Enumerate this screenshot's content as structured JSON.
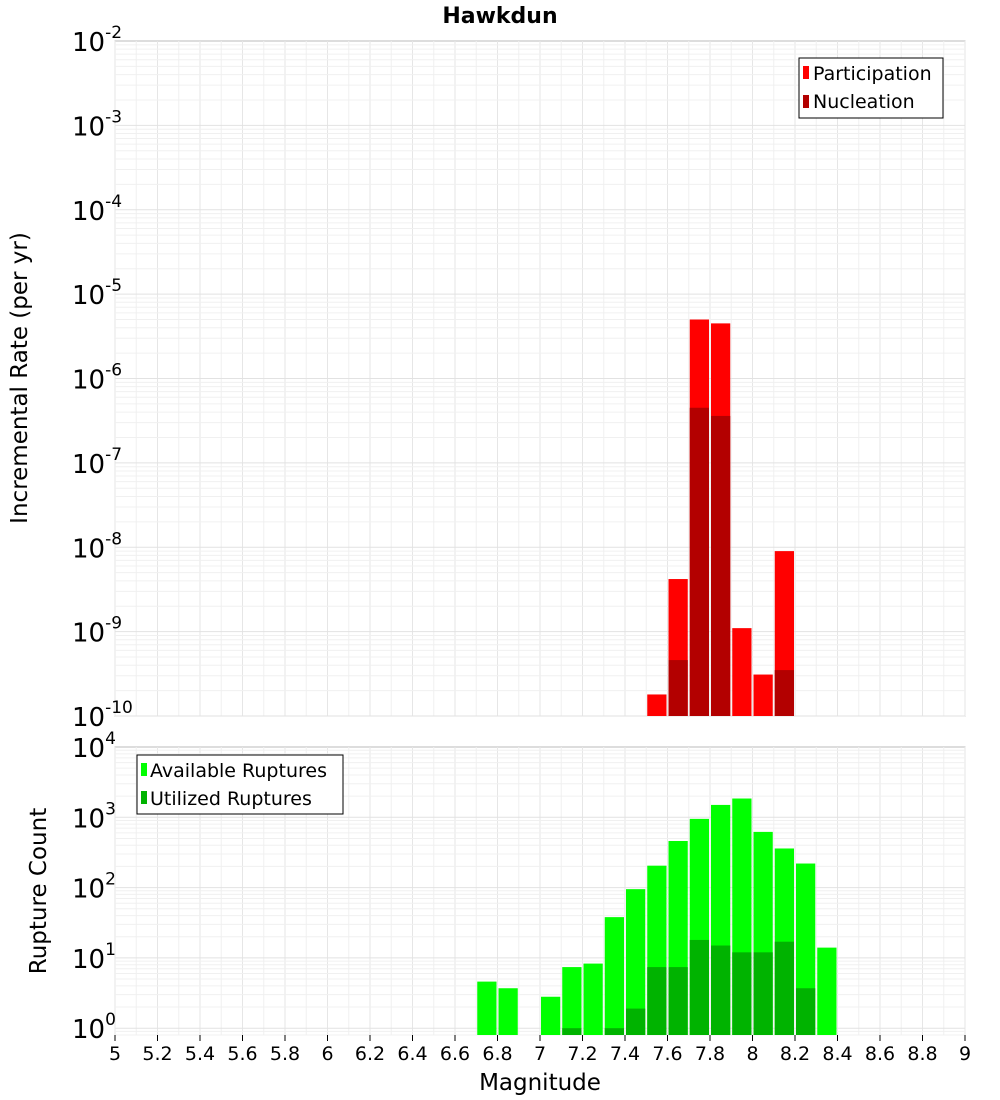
{
  "chart_data": [
    {
      "type": "bar",
      "title": "Hawkdun",
      "ylabel": "Incremental Rate (per yr)",
      "xlabel": "",
      "yscale": "log",
      "ylim": [
        1e-10,
        0.01
      ],
      "xlim": [
        5,
        9
      ],
      "x": [
        7.55,
        7.65,
        7.75,
        7.85,
        7.95,
        8.05,
        8.15
      ],
      "series": [
        {
          "name": "Participation",
          "color": "#ff0000",
          "values": [
            1.8e-10,
            4.2e-09,
            5e-06,
            4.5e-06,
            1.1e-09,
            3.1e-10,
            9e-09
          ]
        },
        {
          "name": "Nucleation",
          "color": "#b30000",
          "values": [
            null,
            4.6e-10,
            4.5e-07,
            3.6e-07,
            null,
            null,
            3.5e-10
          ]
        }
      ],
      "y_ticks": [
        {
          "base": "10",
          "exp": "-2"
        },
        {
          "base": "10",
          "exp": "-3"
        },
        {
          "base": "10",
          "exp": "-4"
        },
        {
          "base": "10",
          "exp": "-5"
        },
        {
          "base": "10",
          "exp": "-6"
        },
        {
          "base": "10",
          "exp": "-7"
        },
        {
          "base": "10",
          "exp": "-8"
        },
        {
          "base": "10",
          "exp": "-9"
        },
        {
          "base": "10",
          "exp": "-10"
        }
      ],
      "legend": {
        "placement": "top-right"
      },
      "grid": true
    },
    {
      "type": "bar",
      "title": "",
      "ylabel": "Rupture Count",
      "xlabel": "Magnitude",
      "yscale": "log",
      "ylim": [
        0.8,
        10000
      ],
      "xlim": [
        5,
        9
      ],
      "x": [
        6.75,
        6.85,
        6.95,
        7.05,
        7.15,
        7.25,
        7.35,
        7.45,
        7.55,
        7.65,
        7.75,
        7.85,
        7.95,
        8.05,
        8.15,
        8.25,
        8.35
      ],
      "series": [
        {
          "name": "Available Ruptures",
          "color": "#00ff00",
          "values": [
            4.6,
            3.7,
            null,
            2.8,
            7.4,
            8.3,
            38,
            95,
            205,
            460,
            950,
            1500,
            1850,
            620,
            360,
            220,
            14
          ]
        },
        {
          "name": "Utilized Ruptures",
          "color": "#00b300",
          "values": [
            null,
            null,
            null,
            null,
            1.0,
            null,
            1.0,
            1.9,
            7.4,
            7.4,
            18,
            15,
            12,
            12,
            17,
            3.7,
            null
          ]
        }
      ],
      "y_ticks": [
        {
          "base": "10",
          "exp": "4"
        },
        {
          "base": "10",
          "exp": "3"
        },
        {
          "base": "10",
          "exp": "2"
        },
        {
          "base": "10",
          "exp": "1"
        },
        {
          "base": "10",
          "exp": "0"
        }
      ],
      "x_ticks": [
        "5",
        "5.2",
        "5.4",
        "5.6",
        "5.8",
        "6",
        "6.2",
        "6.4",
        "6.6",
        "6.8",
        "7",
        "7.2",
        "7.4",
        "7.6",
        "7.8",
        "8",
        "8.2",
        "8.4",
        "8.6",
        "8.8",
        "9"
      ],
      "legend": {
        "placement": "top-left"
      },
      "grid": true
    }
  ]
}
